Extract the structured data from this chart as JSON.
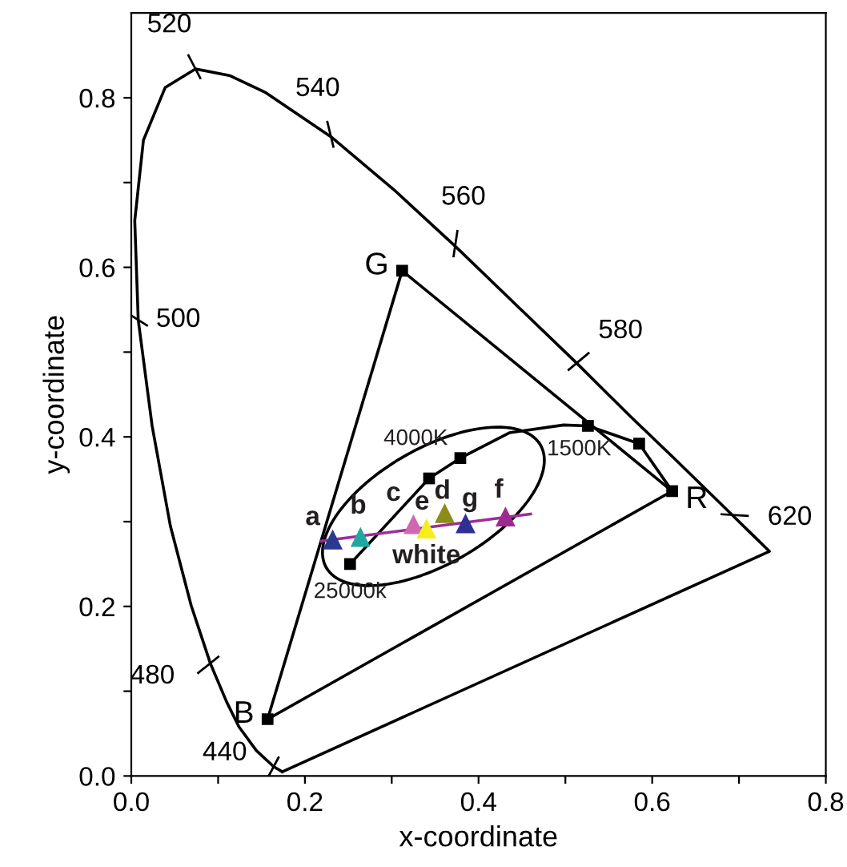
{
  "chart_data": {
    "type": "line",
    "xlabel": "x-coordinate",
    "ylabel": "y-coordinate",
    "xlim": [
      0,
      0.8
    ],
    "ylim": [
      0,
      0.9
    ],
    "xticks": [
      {
        "value": 0,
        "label": "0.0"
      },
      {
        "value": 0.1,
        "label": null
      },
      0.2,
      {
        "value": 0.3,
        "label": null
      },
      0.4,
      {
        "value": 0.5,
        "label": null
      },
      0.6,
      {
        "value": 0.7,
        "label": null
      },
      0.8
    ],
    "yticks": [
      {
        "value": 0,
        "label": "0.0"
      },
      {
        "value": 0.1,
        "label": null
      },
      0.2,
      {
        "value": 0.3,
        "label": null
      },
      0.4,
      {
        "value": 0.5,
        "label": null
      },
      0.6,
      {
        "value": 0.7,
        "label": null
      },
      0.8
    ],
    "grid": false,
    "legend": false,
    "series": [
      {
        "color": "#000000",
        "x": [
          0.157,
          0.312
        ],
        "values": [
          0.067,
          0.596
        ]
      },
      {
        "color": "#000000",
        "x": [
          0.157,
          0.623
        ],
        "values": [
          0.067,
          0.336
        ]
      },
      {
        "color": "#000000",
        "x": [
          0.312,
          0.623
        ],
        "values": [
          0.596,
          0.336
        ]
      },
      {
        "color": "#000000",
        "x": [
          0.252,
          0.343,
          0.379,
          0.436,
          0.498,
          0.526,
          0.585,
          0.623
        ],
        "values": [
          0.25,
          0.351,
          0.375,
          0.405,
          0.414,
          0.413,
          0.392,
          0.336
        ]
      },
      {
        "type": "scatter",
        "marker": "square",
        "color": "#000000",
        "x": [
          0.312,
          0.157,
          0.623,
          0.252,
          0.343,
          0.379,
          0.526,
          0.585
        ],
        "values": [
          0.596,
          0.067,
          0.336,
          0.25,
          0.351,
          0.375,
          0.413,
          0.392
        ]
      },
      {
        "color": "#9b2d9b",
        "x": [
          0.219,
          0.46
        ],
        "values": [
          0.277,
          0.309
        ]
      },
      {
        "type": "scatter",
        "marker": "triangle",
        "name": "a",
        "color": "#2b3990",
        "x": [
          0.232
        ],
        "values": [
          0.279
        ]
      },
      {
        "type": "scatter",
        "marker": "triangle",
        "name": "b",
        "color": "#1fa8a0",
        "x": [
          0.264
        ],
        "values": [
          0.282
        ]
      },
      {
        "type": "scatter",
        "marker": "triangle",
        "name": "c",
        "color": "#d067b0",
        "x": [
          0.325
        ],
        "values": [
          0.297
        ]
      },
      {
        "type": "scatter",
        "marker": "triangle",
        "name": "e",
        "color": "#f5ee1a",
        "x": [
          0.34
        ],
        "values": [
          0.292
        ]
      },
      {
        "type": "scatter",
        "marker": "triangle",
        "name": "d",
        "color": "#8c8c1a",
        "x": [
          0.361
        ],
        "values": [
          0.31
        ]
      },
      {
        "type": "scatter",
        "marker": "triangle",
        "name": "g",
        "color": "#2e3192",
        "x": [
          0.385
        ],
        "values": [
          0.298
        ]
      },
      {
        "type": "scatter",
        "marker": "triangle",
        "name": "f",
        "color": "#9e2a8e",
        "x": [
          0.431
        ],
        "values": [
          0.306
        ]
      }
    ],
    "annotations": [
      "520",
      "540",
      "560",
      "580",
      "620",
      "500",
      "480",
      "440",
      {
        "text": "G",
        "x": 0.312,
        "y": 0.596
      },
      {
        "text": "B",
        "x": 0.157,
        "y": 0.067
      },
      {
        "text": "R",
        "x": 0.623,
        "y": 0.336
      },
      {
        "text": "4000K",
        "x": 0.343,
        "y": 0.351
      },
      {
        "text": "1500K",
        "x": 0.526,
        "y": 0.413
      },
      {
        "text": "25000k",
        "x": 0.252,
        "y": 0.25
      },
      {
        "text": "white",
        "x": 0.34,
        "y": 0.292
      }
    ]
  }
}
